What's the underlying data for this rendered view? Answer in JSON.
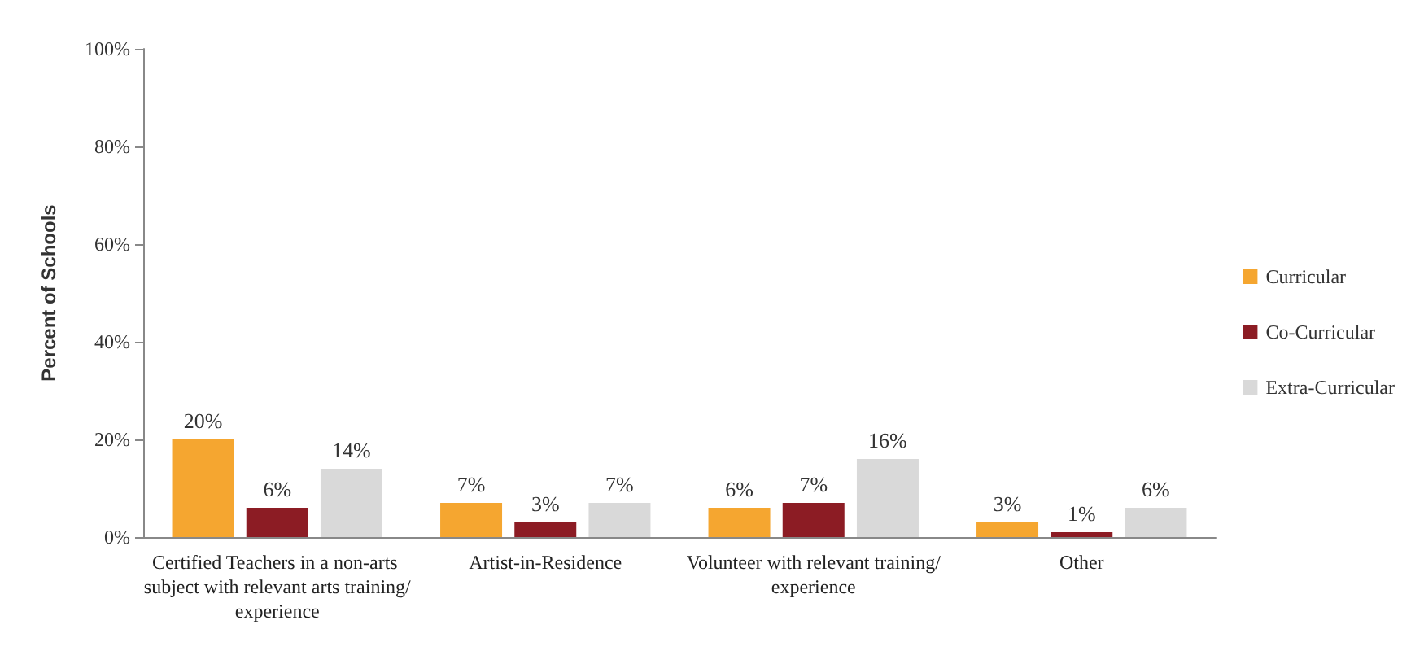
{
  "chart_data": {
    "type": "bar",
    "ylabel": "Percent of Schools",
    "categories": [
      "Certified Teachers in a non-arts subject with relevant arts training/experience",
      "Artist-in-Residence",
      "Volunteer with relevant training/experience",
      "Other"
    ],
    "series": [
      {
        "name": "Curricular",
        "color": "#f5a630",
        "values": [
          20,
          7,
          6,
          3
        ],
        "value_labels": [
          "20%",
          "7%",
          "6%",
          "3%"
        ]
      },
      {
        "name": "Co-Curricular",
        "color": "#8c1c24",
        "values": [
          6,
          3,
          7,
          1
        ],
        "value_labels": [
          "6%",
          "3%",
          "7%",
          "1%"
        ]
      },
      {
        "name": "Extra-Curricular",
        "color": "#d9d9d9",
        "values": [
          14,
          7,
          16,
          6
        ],
        "value_labels": [
          "14%",
          "7%",
          "16%",
          "6%"
        ]
      }
    ],
    "ylim": [
      0,
      100
    ],
    "yticks": [
      {
        "value": 0,
        "label": "0%"
      },
      {
        "value": 20,
        "label": "20%"
      },
      {
        "value": 40,
        "label": "40%"
      },
      {
        "value": 60,
        "label": "60%"
      },
      {
        "value": 80,
        "label": "80%"
      },
      {
        "value": 100,
        "label": "100%"
      }
    ],
    "grid": false,
    "legend": "right"
  }
}
